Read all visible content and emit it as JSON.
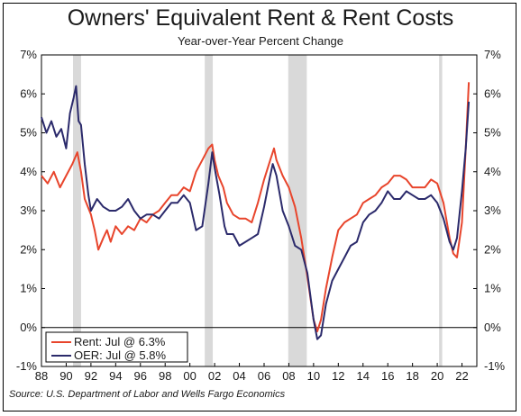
{
  "chart_data": {
    "type": "line",
    "title": "Owners' Equivalent Rent & Rent Costs",
    "subtitle": "Year-over-Year Percent Change",
    "source": "Source: U.S. Department of Labor and Wells Fargo Economics",
    "x_tick_labels": [
      "88",
      "90",
      "92",
      "94",
      "96",
      "98",
      "00",
      "02",
      "04",
      "06",
      "08",
      "10",
      "12",
      "14",
      "16",
      "18",
      "20",
      "22"
    ],
    "x_ticks": [
      1988,
      1990,
      1992,
      1994,
      1996,
      1998,
      2000,
      2002,
      2004,
      2006,
      2008,
      2010,
      2012,
      2014,
      2016,
      2018,
      2020,
      2022
    ],
    "y_ticks": [
      -1,
      0,
      1,
      2,
      3,
      4,
      5,
      6,
      7
    ],
    "y_tick_labels": [
      "-1%",
      "0%",
      "1%",
      "2%",
      "3%",
      "4%",
      "5%",
      "6%",
      "7%"
    ],
    "xlim": [
      1988,
      2023.2
    ],
    "ylim": [
      -1,
      7
    ],
    "recessions": [
      [
        1990.55,
        1991.2
      ],
      [
        2001.2,
        2001.85
      ],
      [
        2007.95,
        2009.45
      ],
      [
        2020.15,
        2020.4
      ]
    ],
    "legend_position": "bottom-left",
    "colors": {
      "rent": "#e8452c",
      "oer": "#2b2a6b",
      "recession": "#d9d9d9"
    },
    "series": [
      {
        "name": "Rent: Jul @ 6.3%",
        "key": "rent",
        "x": [
          1988.0,
          1988.5,
          1989.0,
          1989.5,
          1990.0,
          1990.5,
          1990.9,
          1991.2,
          1991.5,
          1992.0,
          1992.3,
          1992.6,
          1993.0,
          1993.3,
          1993.6,
          1994.0,
          1994.5,
          1995.0,
          1995.5,
          1996.0,
          1996.5,
          1997.0,
          1997.5,
          1998.0,
          1998.5,
          1999.0,
          1999.5,
          2000.0,
          2000.5,
          2001.0,
          2001.5,
          2001.8,
          2002.0,
          2002.3,
          2002.7,
          2003.0,
          2003.5,
          2004.0,
          2004.5,
          2005.0,
          2005.5,
          2006.0,
          2006.5,
          2006.8,
          2007.0,
          2007.5,
          2008.0,
          2008.5,
          2009.0,
          2009.5,
          2010.0,
          2010.3,
          2010.6,
          2011.0,
          2011.5,
          2012.0,
          2012.5,
          2013.0,
          2013.5,
          2014.0,
          2014.5,
          2015.0,
          2015.5,
          2016.0,
          2016.5,
          2017.0,
          2017.5,
          2018.0,
          2018.5,
          2019.0,
          2019.5,
          2020.0,
          2020.5,
          2021.0,
          2021.3,
          2021.6,
          2022.0,
          2022.3,
          2022.55
        ],
        "values": [
          3.9,
          3.7,
          4.0,
          3.6,
          3.9,
          4.2,
          4.5,
          4.0,
          3.3,
          2.9,
          2.5,
          2.0,
          2.3,
          2.5,
          2.2,
          2.6,
          2.4,
          2.6,
          2.5,
          2.8,
          2.7,
          2.9,
          3.0,
          3.2,
          3.4,
          3.4,
          3.6,
          3.5,
          4.0,
          4.3,
          4.6,
          4.7,
          4.3,
          3.9,
          3.6,
          3.2,
          2.9,
          2.8,
          2.8,
          2.7,
          3.2,
          3.8,
          4.3,
          4.6,
          4.3,
          3.9,
          3.6,
          3.1,
          2.3,
          1.3,
          0.2,
          -0.1,
          0.2,
          1.0,
          1.8,
          2.5,
          2.7,
          2.8,
          2.9,
          3.2,
          3.3,
          3.4,
          3.6,
          3.7,
          3.9,
          3.9,
          3.8,
          3.6,
          3.6,
          3.6,
          3.8,
          3.7,
          3.2,
          2.3,
          1.9,
          1.8,
          2.7,
          4.6,
          6.3
        ]
      },
      {
        "name": "OER: Jul @ 5.8%",
        "key": "oer",
        "x": [
          1988.0,
          1988.4,
          1988.8,
          1989.2,
          1989.6,
          1990.0,
          1990.3,
          1990.6,
          1990.8,
          1991.0,
          1991.2,
          1991.5,
          1991.8,
          1992.0,
          1992.5,
          1993.0,
          1993.5,
          1994.0,
          1994.5,
          1995.0,
          1995.5,
          1996.0,
          1996.5,
          1997.0,
          1997.5,
          1998.0,
          1998.5,
          1999.0,
          1999.5,
          2000.0,
          2000.5,
          2001.0,
          2001.5,
          2001.8,
          2002.0,
          2002.4,
          2002.8,
          2003.0,
          2003.5,
          2004.0,
          2004.5,
          2005.0,
          2005.5,
          2006.0,
          2006.5,
          2006.7,
          2007.0,
          2007.5,
          2008.0,
          2008.5,
          2009.0,
          2009.5,
          2010.0,
          2010.3,
          2010.6,
          2011.0,
          2011.5,
          2012.0,
          2012.5,
          2013.0,
          2013.5,
          2014.0,
          2014.5,
          2015.0,
          2015.5,
          2016.0,
          2016.5,
          2017.0,
          2017.5,
          2018.0,
          2018.5,
          2019.0,
          2019.5,
          2020.0,
          2020.5,
          2021.0,
          2021.3,
          2021.6,
          2022.0,
          2022.3,
          2022.55
        ],
        "values": [
          5.4,
          5.0,
          5.3,
          4.9,
          5.1,
          4.6,
          5.5,
          5.9,
          6.2,
          5.3,
          5.2,
          4.2,
          3.4,
          3.0,
          3.3,
          3.1,
          3.0,
          3.0,
          3.1,
          3.3,
          3.0,
          2.8,
          2.9,
          2.9,
          2.8,
          3.0,
          3.2,
          3.2,
          3.4,
          3.2,
          2.5,
          2.6,
          3.7,
          4.5,
          4.1,
          3.4,
          2.6,
          2.4,
          2.4,
          2.1,
          2.2,
          2.3,
          2.4,
          3.1,
          3.9,
          4.2,
          3.9,
          3.0,
          2.6,
          2.1,
          2.0,
          1.4,
          0.2,
          -0.3,
          -0.2,
          0.6,
          1.2,
          1.5,
          1.8,
          2.1,
          2.2,
          2.7,
          2.9,
          3.0,
          3.2,
          3.5,
          3.3,
          3.3,
          3.5,
          3.4,
          3.3,
          3.3,
          3.4,
          3.2,
          2.8,
          2.2,
          2.0,
          2.3,
          3.5,
          4.6,
          5.8
        ]
      }
    ]
  }
}
